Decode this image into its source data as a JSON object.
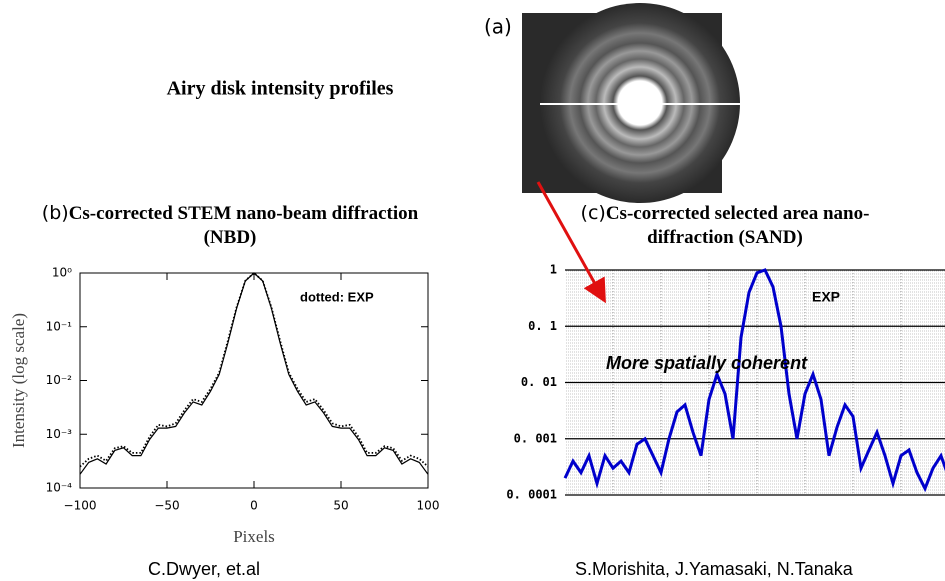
{
  "title": "Airy disk intensity profiles",
  "panel_a_label": "(a)",
  "credits": [
    "C.Dwyer, et.al",
    "S.Morishita, J.Yamasaki, N.Tanaka"
  ],
  "chart_data": [
    {
      "type": "line",
      "panel_label": "(b)",
      "title": "Cs-corrected STEM nano-beam diffraction (NBD)",
      "x_label": "Pixels",
      "y_label": "Intensity (log scale)",
      "annotations": [
        "dotted: EXP"
      ],
      "y_scale": "log",
      "xlim": [
        -100,
        100
      ],
      "xticks": [
        {
          "value": -100,
          "label": "−100"
        },
        {
          "value": -50,
          "label": "−50"
        },
        0,
        50,
        100
      ],
      "ylim": [
        0.0001,
        1
      ],
      "yticks": [
        {
          "value": 0.0001,
          "label": "10⁻⁴"
        },
        {
          "value": 0.001,
          "label": "10⁻³"
        },
        {
          "value": 0.01,
          "label": "10⁻²"
        },
        {
          "value": 0.1,
          "label": "10⁻¹"
        },
        {
          "value": 1,
          "label": "10⁰"
        }
      ],
      "grid": false,
      "x": [
        -100,
        -95,
        -90,
        -85,
        -80,
        -75,
        -70,
        -65,
        -60,
        -55,
        -50,
        -45,
        -40,
        -35,
        -30,
        -25,
        -20,
        -15,
        -10,
        -5,
        0,
        5,
        10,
        15,
        20,
        25,
        30,
        35,
        40,
        45,
        50,
        55,
        60,
        65,
        70,
        75,
        80,
        85,
        90,
        95,
        100
      ],
      "series": [
        {
          "color": "#000000",
          "line_style": "solid",
          "values": [
            0.00018,
            0.0003,
            0.00035,
            0.00028,
            0.0005,
            0.00056,
            0.0004,
            0.0004,
            0.0008,
            0.0013,
            0.0013,
            0.0014,
            0.0025,
            0.004,
            0.0035,
            0.0063,
            0.013,
            0.05,
            0.22,
            0.71,
            1,
            0.71,
            0.22,
            0.05,
            0.013,
            0.0063,
            0.0035,
            0.004,
            0.0025,
            0.0014,
            0.0013,
            0.0013,
            0.0008,
            0.0004,
            0.0004,
            0.00056,
            0.0005,
            0.00028,
            0.00035,
            0.0003,
            0.00018
          ]
        },
        {
          "color": "#000000",
          "line_style": "dotted",
          "values": [
            0.00025,
            0.00035,
            0.0004,
            0.00032,
            0.00055,
            0.0006,
            0.00045,
            0.00045,
            0.0009,
            0.0015,
            0.0014,
            0.0016,
            0.0028,
            0.0045,
            0.004,
            0.007,
            0.014,
            0.055,
            0.23,
            0.72,
            1,
            0.72,
            0.23,
            0.055,
            0.014,
            0.007,
            0.004,
            0.0045,
            0.0028,
            0.0016,
            0.0014,
            0.0015,
            0.0009,
            0.00045,
            0.00045,
            0.0006,
            0.00055,
            0.00032,
            0.0004,
            0.00035,
            0.00025
          ]
        }
      ]
    },
    {
      "type": "line",
      "panel_label": "(c)",
      "title": "Cs-corrected selected area nano-diffraction (SAND)",
      "annotations": [
        "EXP",
        "More spatially coherent"
      ],
      "y_scale": "log",
      "ylim": [
        0.0001,
        1
      ],
      "yticks": [
        {
          "value": 0.0001,
          "label": "0. 0001"
        },
        {
          "value": 0.001,
          "label": "0. 001"
        },
        {
          "value": 0.01,
          "label": "0. 01"
        },
        {
          "value": 0.1,
          "label": "0. 1"
        },
        1
      ],
      "grid": true,
      "series": [
        {
          "color": "#0000cc",
          "line_style": "solid",
          "values": [
            0.0002,
            0.0004,
            0.00025,
            0.0005,
            0.00016,
            0.0005,
            0.0003,
            0.0004,
            0.00025,
            0.0008,
            0.001,
            0.0005,
            0.00025,
            0.001,
            0.003,
            0.004,
            0.0013,
            0.0005,
            0.005,
            0.014,
            0.0063,
            0.001,
            0.063,
            0.4,
            0.89,
            1,
            0.5,
            0.1,
            0.0063,
            0.001,
            0.0063,
            0.014,
            0.005,
            0.0005,
            0.0016,
            0.004,
            0.0025,
            0.0003,
            0.00063,
            0.0013,
            0.0005,
            0.00016,
            0.0005,
            0.00063,
            0.00025,
            0.00013,
            0.0003,
            0.0005,
            0.0002
          ]
        }
      ]
    }
  ]
}
